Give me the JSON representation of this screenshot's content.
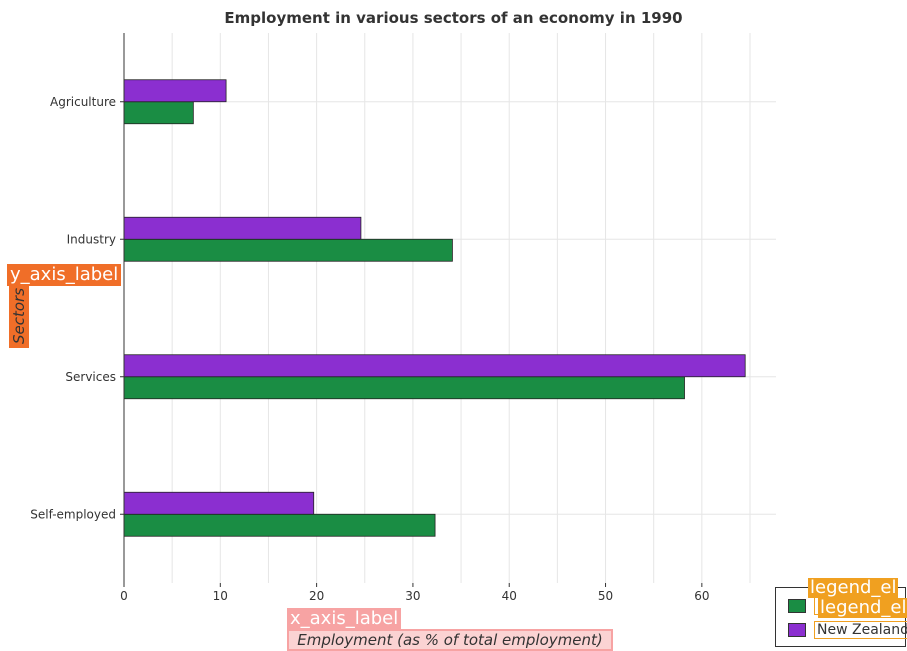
{
  "chart_data": {
    "type": "bar",
    "orientation": "horizontal",
    "title": "Employment in various sectors of an economy in 1990",
    "xlabel": "Employment (as % of total employment)",
    "ylabel": "Sectors",
    "categories": [
      "Agriculture",
      "Industry",
      "Services",
      "Self-employed"
    ],
    "series": [
      {
        "name": "",
        "color": "#1a8d44",
        "values": [
          7.2,
          34.1,
          58.2,
          32.3
        ]
      },
      {
        "name": "New Zealand",
        "color": "#8b2fd0",
        "values": [
          10.6,
          24.6,
          64.5,
          19.7
        ]
      }
    ],
    "x_ticks": [
      0,
      10,
      20,
      30,
      40,
      50,
      60
    ],
    "x_tick_labels": [
      "0",
      "10",
      "20",
      "30",
      "40",
      "50",
      "60"
    ],
    "xlim": [
      0,
      67.7
    ],
    "grid": true,
    "legend_position": "bottom-right"
  },
  "overlays": {
    "x_axis_tag": "x_axis_label",
    "y_axis_tag": "y_axis_label",
    "legend_tag_1": "legend_el",
    "legend_tag_2": "legend_el"
  }
}
